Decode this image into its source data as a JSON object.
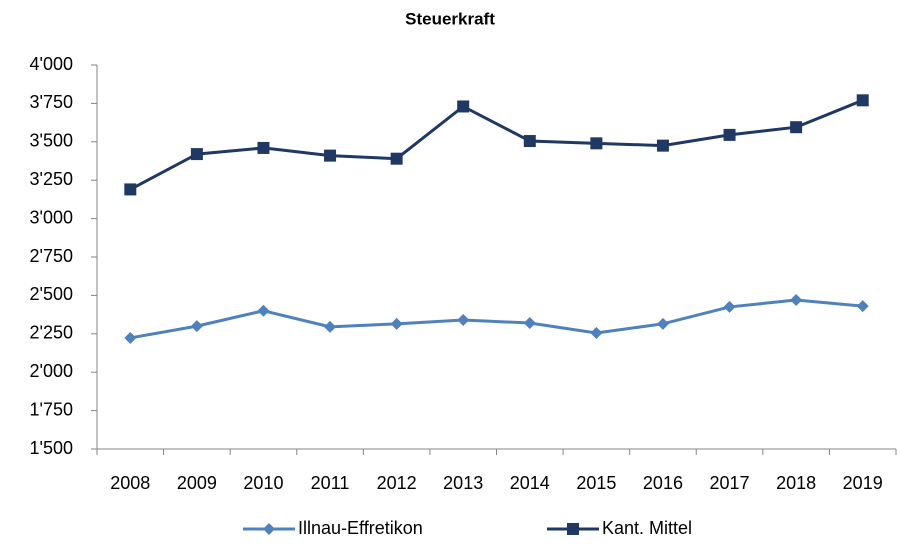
{
  "chart_data": {
    "type": "line",
    "title": "Steuerkraft",
    "categories": [
      "2008",
      "2009",
      "2010",
      "2011",
      "2012",
      "2013",
      "2014",
      "2015",
      "2016",
      "2017",
      "2018",
      "2019"
    ],
    "series": [
      {
        "name": "Illnau-Effretikon",
        "color": "#4f81bd",
        "marker": "diamond",
        "values": [
          2223,
          2300,
          2400,
          2295,
          2315,
          2340,
          2320,
          2255,
          2315,
          2425,
          2470,
          2430
        ]
      },
      {
        "name": "Kant. Mittel",
        "color": "#1f3864",
        "marker": "square",
        "values": [
          3190,
          3420,
          3460,
          3410,
          3390,
          3730,
          3505,
          3490,
          3475,
          3545,
          3595,
          3770
        ]
      }
    ],
    "ylim": [
      1500,
      4000
    ],
    "yticks": [
      {
        "value": 1500,
        "label": "1'500"
      },
      {
        "value": 1750,
        "label": "1'750"
      },
      {
        "value": 2000,
        "label": "2'000"
      },
      {
        "value": 2250,
        "label": "2'250"
      },
      {
        "value": 2500,
        "label": "2'500"
      },
      {
        "value": 2750,
        "label": "2'750"
      },
      {
        "value": 3000,
        "label": "3'000"
      },
      {
        "value": 3250,
        "label": "3'250"
      },
      {
        "value": 3500,
        "label": "3'500"
      },
      {
        "value": 3750,
        "label": "3'750"
      },
      {
        "value": 4000,
        "label": "4'000"
      }
    ],
    "grid": false,
    "legend": "bottom"
  }
}
